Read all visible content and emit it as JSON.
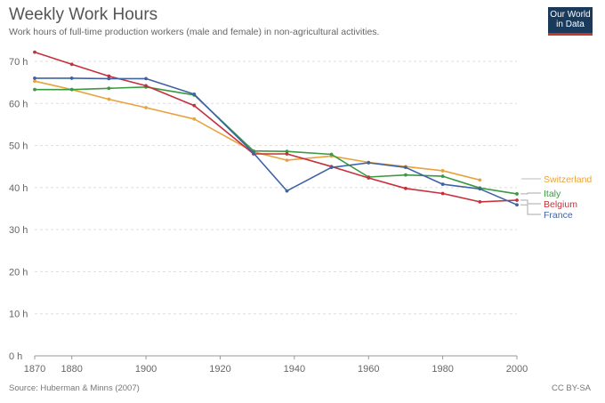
{
  "title": "Weekly Work Hours",
  "subtitle": "Work hours of full-time production workers (male and female) in non-agricultural activities.",
  "logo_text": "Our World in Data",
  "source": "Source: Huberman & Minns (2007)",
  "license": "CC BY-SA",
  "chart_data": {
    "type": "line",
    "title": "Weekly Work Hours",
    "xlabel": "",
    "ylabel": "",
    "xlim": [
      1870,
      2000
    ],
    "ylim": [
      0,
      70
    ],
    "x_ticks": [
      "1870",
      "1880",
      "1900",
      "1920",
      "1940",
      "1960",
      "1980",
      "2000"
    ],
    "y_ticks": [
      "0 h",
      "10 h",
      "20 h",
      "30 h",
      "40 h",
      "50 h",
      "60 h",
      "70 h"
    ],
    "grid": "horizontal dashed",
    "legend_placement": "right, labels at line ends",
    "series": [
      {
        "name": "Switzerland",
        "color": "#e8a33d",
        "points": [
          [
            1870,
            65.3
          ],
          [
            1880,
            63.3
          ],
          [
            1890,
            61.0
          ],
          [
            1900,
            59.0
          ],
          [
            1913,
            56.3
          ],
          [
            1929,
            48.5
          ],
          [
            1938,
            46.5
          ],
          [
            1950,
            47.5
          ],
          [
            1960,
            46.0
          ],
          [
            1970,
            45.0
          ],
          [
            1980,
            44.0
          ],
          [
            1990,
            41.8
          ]
        ]
      },
      {
        "name": "Italy",
        "color": "#3a9a3f",
        "points": [
          [
            1870,
            63.3
          ],
          [
            1880,
            63.3
          ],
          [
            1890,
            63.6
          ],
          [
            1900,
            63.9
          ],
          [
            1913,
            62.0
          ],
          [
            1929,
            48.7
          ],
          [
            1938,
            48.6
          ],
          [
            1950,
            47.9
          ],
          [
            1960,
            42.5
          ],
          [
            1970,
            43.0
          ],
          [
            1980,
            42.7
          ],
          [
            1990,
            39.9
          ],
          [
            2000,
            38.5
          ]
        ]
      },
      {
        "name": "Belgium",
        "color": "#c5303a",
        "points": [
          [
            1870,
            72.2
          ],
          [
            1880,
            69.3
          ],
          [
            1890,
            66.5
          ],
          [
            1900,
            64.2
          ],
          [
            1913,
            59.5
          ],
          [
            1929,
            48.0
          ],
          [
            1938,
            48.0
          ],
          [
            1950,
            45.0
          ],
          [
            1960,
            42.3
          ],
          [
            1970,
            39.8
          ],
          [
            1980,
            38.6
          ],
          [
            1990,
            36.6
          ],
          [
            2000,
            37.0
          ]
        ]
      },
      {
        "name": "France",
        "color": "#3e62a5",
        "points": [
          [
            1870,
            66.0
          ],
          [
            1880,
            66.0
          ],
          [
            1890,
            65.9
          ],
          [
            1900,
            65.9
          ],
          [
            1913,
            62.2
          ],
          [
            1929,
            48.2
          ],
          [
            1938,
            39.2
          ],
          [
            1950,
            44.8
          ],
          [
            1960,
            45.9
          ],
          [
            1970,
            44.8
          ],
          [
            1980,
            40.8
          ],
          [
            1990,
            39.7
          ],
          [
            2000,
            35.9
          ]
        ]
      }
    ]
  }
}
